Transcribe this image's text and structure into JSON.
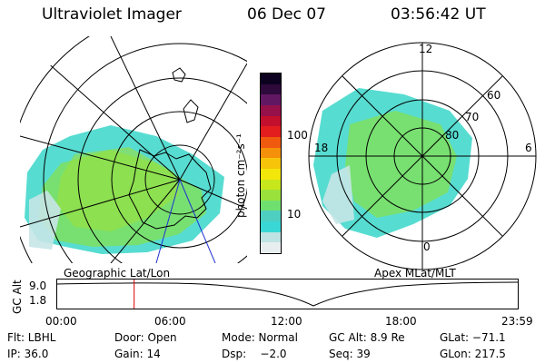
{
  "header": {
    "instrument": "Ultraviolet Imager",
    "date": "06 Dec 07",
    "time": "03:56:42 UT"
  },
  "left_map": {
    "caption": "Geographic Lat/Lon"
  },
  "right_map": {
    "caption": "Apex  MLat/MLT",
    "mlt_labels": {
      "top": "12",
      "left": "18",
      "right": "6",
      "bottom": "0"
    },
    "lat_labels": [
      "60",
      "70",
      "80"
    ]
  },
  "colorbar": {
    "label": "photon cm⁻²s⁻¹",
    "scale": "log",
    "ticks": [
      "100",
      "10"
    ],
    "colors": [
      "#e8eef0",
      "#bfe3e3",
      "#39d8d6",
      "#4ecfc0",
      "#6fe070",
      "#9ae23b",
      "#c7e61b",
      "#f2e60a",
      "#f7c40a",
      "#f5900a",
      "#ef5a0e",
      "#e31d1d",
      "#c20f2d",
      "#96104a",
      "#621763",
      "#2e0a3c",
      "#0c0220"
    ]
  },
  "altitude_plot": {
    "ylabel": "GC Alt",
    "yticks": [
      "9.0",
      "1.8"
    ],
    "xticks": [
      "00:00",
      "06:00",
      "12:00",
      "18:00",
      "23:59"
    ],
    "current_time_fraction": 0.167,
    "marker_color": "#e00000"
  },
  "info": {
    "row1": [
      "Flt: LBHL",
      "Door: Open",
      "Mode: Normal",
      "GC Alt: 8.9 Re",
      "GLat: −71.1"
    ],
    "row2": [
      "IP: 36.0",
      "Gain: 14",
      "Dsp:    −2.0",
      "Seq: 39",
      "GLon: 217.5"
    ]
  }
}
